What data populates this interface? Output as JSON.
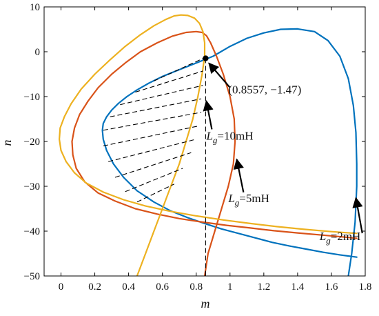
{
  "chart_data": {
    "type": "line",
    "title": "",
    "xlabel": "m",
    "ylabel": "n",
    "xlim": [
      -0.1,
      1.8
    ],
    "ylim": [
      -50,
      10
    ],
    "xticks": [
      0,
      0.2,
      0.4,
      0.6,
      0.8,
      1,
      1.2,
      1.4,
      1.6,
      1.8
    ],
    "xtick_labels": [
      "0",
      "0.2",
      "0.4",
      "0.6",
      "0.8",
      "1",
      "1.2",
      "1.4",
      "1.6",
      "1.8"
    ],
    "yticks": [
      10,
      0,
      -10,
      -20,
      -30,
      -40,
      -50
    ],
    "ytick_labels": [
      "10",
      "0",
      "−10",
      "−20",
      "−30",
      "−40",
      "−50"
    ],
    "grid": false,
    "colors": {
      "Lg2": "#0072bd",
      "Lg5": "#d95319",
      "Lg10": "#edb120"
    },
    "series": [
      {
        "key": "Lg2",
        "label_text": "L",
        "label_sub": "g",
        "label_rest": "=2mH",
        "x": [
          1.7,
          1.72,
          1.74,
          1.75,
          1.75,
          1.745,
          1.73,
          1.7,
          1.65,
          1.58,
          1.5,
          1.4,
          1.3,
          1.2,
          1.1,
          1.0,
          0.9,
          0.8,
          0.7,
          0.6,
          0.52,
          0.45,
          0.39,
          0.34,
          0.3,
          0.27,
          0.25,
          0.245,
          0.25,
          0.27,
          0.31,
          0.37,
          0.45,
          0.55,
          0.65,
          0.75,
          0.85,
          0.95,
          1.05,
          1.15,
          1.25,
          1.35,
          1.45,
          1.55,
          1.65,
          1.75
        ],
        "y": [
          -50,
          -45,
          -38,
          -30,
          -25,
          -18,
          -12,
          -6,
          -1,
          2.5,
          4.5,
          5.1,
          5.0,
          4.2,
          3,
          1.2,
          -1,
          -2.5,
          -4,
          -5.5,
          -7,
          -8.5,
          -10,
          -11.5,
          -13,
          -14.5,
          -16,
          -17.5,
          -19.5,
          -22,
          -25,
          -28,
          -31,
          -33.5,
          -35.5,
          -37,
          -38.3,
          -39.5,
          -40.5,
          -41.5,
          -42.5,
          -43.3,
          -44,
          -44.7,
          -45.3,
          -45.8
        ]
      },
      {
        "key": "Lg5",
        "label_text": "L",
        "label_sub": "g",
        "label_rest": "=5mH",
        "x": [
          0.85,
          0.87,
          0.91,
          0.95,
          0.99,
          1.02,
          1.03,
          1.025,
          1.0,
          0.96,
          0.92,
          0.885,
          0.86,
          0.835,
          0.8,
          0.74,
          0.66,
          0.57,
          0.47,
          0.38,
          0.3,
          0.22,
          0.16,
          0.11,
          0.08,
          0.065,
          0.07,
          0.09,
          0.14,
          0.22,
          0.32,
          0.44,
          0.57,
          0.7,
          0.84,
          0.98,
          1.12,
          1.26,
          1.4,
          1.55,
          1.7,
          1.75
        ],
        "y": [
          -50,
          -45,
          -40,
          -35,
          -30,
          -25,
          -20,
          -15,
          -10,
          -5,
          -1,
          2,
          3.6,
          4.3,
          4.5,
          4.3,
          3.5,
          2,
          0,
          -2.5,
          -5,
          -8,
          -11,
          -14,
          -17,
          -20,
          -23,
          -26,
          -29,
          -31.5,
          -33.3,
          -35,
          -36.2,
          -37.2,
          -38,
          -38.7,
          -39.3,
          -39.9,
          -40.4,
          -40.9,
          -41.4,
          -41.6
        ]
      },
      {
        "key": "Lg10",
        "label_text": "L",
        "label_sub": "g",
        "label_rest": "=10mH",
        "x": [
          0.45,
          0.5,
          0.55,
          0.6,
          0.65,
          0.7,
          0.74,
          0.78,
          0.81,
          0.835,
          0.85,
          0.85,
          0.84,
          0.82,
          0.79,
          0.75,
          0.71,
          0.67,
          0.62,
          0.55,
          0.47,
          0.38,
          0.29,
          0.2,
          0.12,
          0.06,
          0.02,
          -0.005,
          -0.01,
          0.0,
          0.03,
          0.08,
          0.15,
          0.25,
          0.37,
          0.5,
          0.65,
          0.8,
          0.96,
          1.12,
          1.28,
          1.44,
          1.6,
          1.75
        ],
        "y": [
          -50,
          -45,
          -40,
          -35,
          -30,
          -25,
          -20,
          -15,
          -10,
          -5,
          -1,
          2,
          4.5,
          6.3,
          7.5,
          8.1,
          8.2,
          8.0,
          7.2,
          5.8,
          3.8,
          1.2,
          -1.8,
          -5,
          -8.3,
          -11.6,
          -14.5,
          -17,
          -19.5,
          -22,
          -24.5,
          -27,
          -29.3,
          -31.3,
          -33,
          -34.4,
          -35.6,
          -36.6,
          -37.5,
          -38.3,
          -39,
          -39.6,
          -40.1,
          -40.5
        ]
      }
    ],
    "vline_x": 0.8557,
    "boundary_point": {
      "x": 0.8557,
      "y": -1.47,
      "label": "(0.8557, −1.47)"
    },
    "hatch_segments": [
      [
        0.55,
        -6.5,
        0.84,
        -1.5
      ],
      [
        0.44,
        -9.0,
        0.84,
        -4.3
      ],
      [
        0.35,
        -11.8,
        0.84,
        -7.5
      ],
      [
        0.29,
        -14.5,
        0.83,
        -10.5
      ],
      [
        0.25,
        -17.5,
        0.83,
        -13.5
      ],
      [
        0.25,
        -21.0,
        0.82,
        -16.5
      ],
      [
        0.28,
        -24.5,
        0.8,
        -19.5
      ],
      [
        0.32,
        -28.0,
        0.77,
        -22.5
      ],
      [
        0.38,
        -31.2,
        0.72,
        -26.0
      ],
      [
        0.45,
        -33.5,
        0.67,
        -29.5
      ]
    ],
    "annotations": [
      {
        "key": "pt",
        "text": "(0.8557, −1.47)",
        "tx": 0.99,
        "ty": -9.3,
        "ax": 0.863,
        "ay": -2.1
      },
      {
        "key": "l10",
        "text_i": "L",
        "text_sub": "g",
        "text_rest": "=10mH",
        "tx": 0.86,
        "ty": -19.6,
        "ax": 0.86,
        "ay": -11.0
      },
      {
        "key": "l5",
        "text_i": "L",
        "text_sub": "g",
        "text_rest": "=5mH",
        "tx": 0.99,
        "ty": -33.5,
        "ax": 1.04,
        "ay": -24.0
      },
      {
        "key": "l2",
        "text_i": "L",
        "text_sub": "g",
        "text_rest": "=2mH",
        "tx": 1.53,
        "ty": -42.0,
        "ax": 1.745,
        "ay": -32.6
      }
    ]
  }
}
